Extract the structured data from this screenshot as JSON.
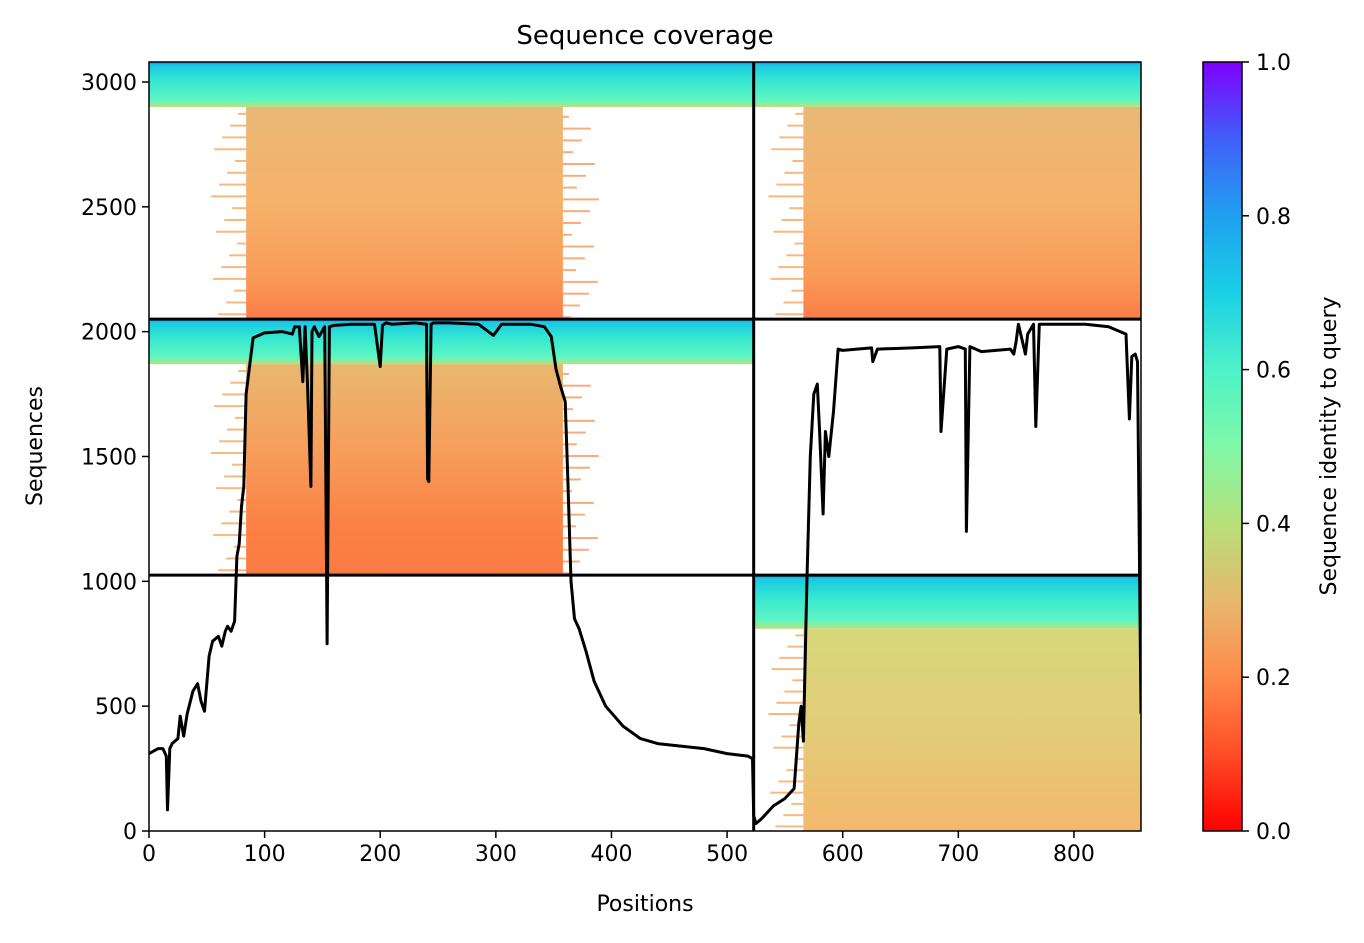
{
  "chart_data": {
    "type": "heatmap",
    "title": "Sequence coverage",
    "xlabel": "Positions",
    "ylabel": "Sequences",
    "colorbar_label": "Sequence identity to query",
    "xlim": [
      0,
      858
    ],
    "ylim": [
      0,
      3080
    ],
    "xticks": [
      "0",
      "100",
      "200",
      "300",
      "400",
      "500",
      "600",
      "700",
      "800"
    ],
    "yticks": [
      "0",
      "500",
      "1000",
      "1500",
      "2000",
      "2500",
      "3000"
    ],
    "colorbar_ticks": [
      "0.0",
      "0.2",
      "0.4",
      "0.6",
      "0.8",
      "1.0"
    ],
    "colorbar_range": [
      0.0,
      1.0
    ],
    "colormap": "rainbow_r",
    "grid": false,
    "chain_boundaries": {
      "x": [
        523
      ],
      "y": [
        1025,
        2050
      ]
    },
    "blocks": [
      {
        "x_range": [
          0,
          523
        ],
        "y_range": [
          2050,
          3080
        ],
        "coverage_x": [
          84,
          358
        ],
        "high_identity_rows": [
          2900,
          3080
        ],
        "low_identity_rows": [
          2050,
          2900
        ]
      },
      {
        "x_range": [
          523,
          858
        ],
        "y_range": [
          2050,
          3080
        ],
        "coverage_x": [
          566,
          858
        ],
        "high_identity_rows": [
          2900,
          3080
        ],
        "low_identity_rows": [
          2050,
          2900
        ]
      },
      {
        "x_range": [
          0,
          523
        ],
        "y_range": [
          1025,
          2050
        ],
        "coverage_x": [
          84,
          358
        ],
        "high_identity_rows": [
          1870,
          2050
        ],
        "low_identity_rows": [
          1025,
          1870
        ]
      },
      {
        "x_range": [
          523,
          858
        ],
        "y_range": [
          0,
          1025
        ],
        "coverage_x": [
          566,
          858
        ],
        "high_identity_rows": [
          810,
          1025
        ],
        "low_identity_rows": [
          0,
          810
        ]
      }
    ],
    "series": [
      {
        "type": "line",
        "color": "#000000",
        "x": [
          0,
          8,
          12,
          15,
          16,
          18,
          20,
          25,
          27,
          30,
          33,
          38,
          42,
          45,
          48,
          52,
          55,
          60,
          63,
          66,
          68,
          71,
          74,
          76,
          78,
          80,
          82,
          84,
          90,
          100,
          115,
          124,
          126,
          130,
          133,
          135,
          137,
          140,
          141,
          143,
          147,
          152,
          154,
          156,
          160,
          175,
          195,
          200,
          202,
          205,
          210,
          230,
          240,
          241,
          242,
          244,
          246,
          260,
          285,
          298,
          305,
          330,
          342,
          348,
          352,
          356,
          360,
          362,
          365,
          368,
          372,
          378,
          385,
          395,
          410,
          425,
          440,
          460,
          480,
          500,
          518,
          522,
          523,
          525,
          530,
          540,
          550,
          558,
          560,
          562,
          564,
          566,
          569,
          572,
          575,
          578,
          580,
          583,
          585,
          588,
          592,
          596,
          600,
          625,
          626,
          630,
          660,
          684,
          685,
          690,
          700,
          706,
          707,
          710,
          720,
          745,
          748,
          750,
          752,
          758,
          760,
          765,
          767,
          770,
          790,
          810,
          830,
          845,
          848,
          850,
          853,
          855,
          858
        ],
        "y": [
          310,
          330,
          330,
          300,
          85,
          330,
          350,
          370,
          460,
          380,
          470,
          560,
          590,
          520,
          480,
          700,
          760,
          780,
          740,
          800,
          820,
          800,
          840,
          1100,
          1150,
          1300,
          1380,
          1750,
          1975,
          1995,
          2000,
          1990,
          2020,
          2020,
          1800,
          2020,
          1800,
          1380,
          2000,
          2020,
          1980,
          2020,
          750,
          2020,
          2025,
          2030,
          2030,
          1860,
          2025,
          2035,
          2030,
          2035,
          2030,
          1410,
          1400,
          2030,
          2035,
          2035,
          2030,
          1985,
          2030,
          2030,
          2020,
          1980,
          1850,
          1780,
          1720,
          1450,
          1000,
          850,
          810,
          720,
          600,
          500,
          420,
          370,
          350,
          340,
          330,
          310,
          300,
          290,
          60,
          30,
          50,
          100,
          130,
          170,
          300,
          430,
          500,
          360,
          1000,
          1500,
          1750,
          1790,
          1600,
          1270,
          1600,
          1500,
          1680,
          1930,
          1925,
          1935,
          1880,
          1930,
          1935,
          1940,
          1600,
          1930,
          1940,
          1930,
          1200,
          1940,
          1920,
          1930,
          1910,
          1960,
          2030,
          1910,
          1990,
          2030,
          1620,
          2030,
          2030,
          2030,
          2020,
          1990,
          1650,
          1900,
          1910,
          1880,
          470
        ]
      }
    ]
  }
}
